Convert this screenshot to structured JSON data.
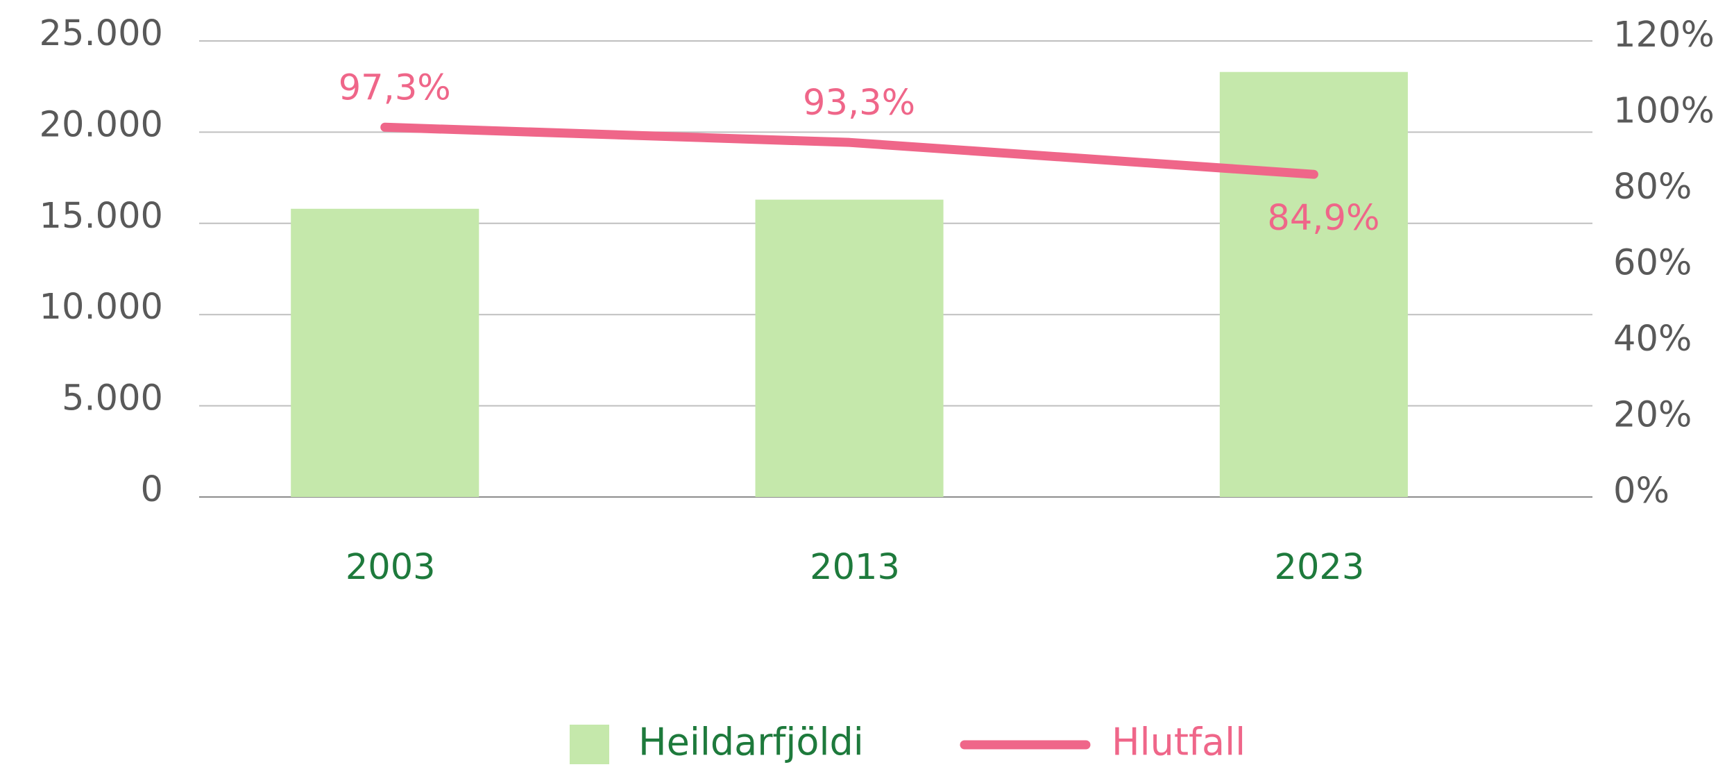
{
  "chart_data": {
    "type": "bar_line",
    "categories": [
      "2003",
      "2013",
      "2023"
    ],
    "series": [
      {
        "name": "Heildarfjöldi",
        "color": "#c5e8ab",
        "type": "bar",
        "values": [
          15800,
          16300,
          23300
        ]
      },
      {
        "name": "Hlutfall",
        "color": "#ef6689",
        "type": "line",
        "axis": "y2",
        "values": [
          97.3,
          93.3,
          84.9
        ],
        "value_labels": [
          "97,3%",
          "93,3%",
          "84,9%"
        ]
      }
    ],
    "ylim": [
      0,
      25000
    ],
    "yticks": [
      0,
      {
        "value": 5000,
        "label": "5.000"
      },
      {
        "value": 10000,
        "label": "10.000"
      },
      {
        "value": 15000,
        "label": "15.000"
      },
      {
        "value": 20000,
        "label": "20.000"
      },
      {
        "value": 25000,
        "label": "25.000"
      }
    ],
    "y2lim": [
      0,
      120
    ],
    "y2ticks": [
      {
        "value": 0,
        "label": "0%"
      },
      {
        "value": 20,
        "label": "20%"
      },
      {
        "value": 40,
        "label": "40%"
      },
      {
        "value": 60,
        "label": "60%"
      },
      {
        "value": 80,
        "label": "80%"
      },
      {
        "value": 100,
        "label": "100%"
      },
      {
        "value": 120,
        "label": "120%"
      }
    ],
    "grid": true,
    "legend": "bottom"
  }
}
